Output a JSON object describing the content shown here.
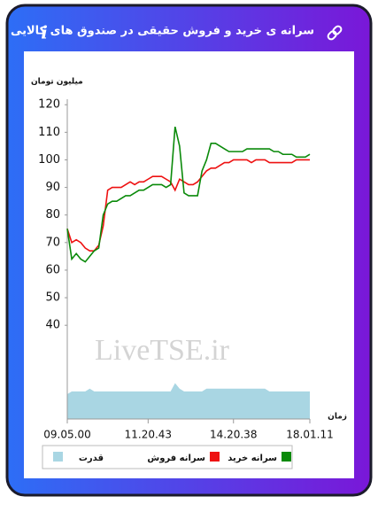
{
  "header": {
    "title": "سرانه ی خرید و فروش حقیقی در صندوق های کالایی",
    "info": "i"
  },
  "chart_data": {
    "type": "line",
    "y_label": "میلیون تومان",
    "x_label": "زمان",
    "watermark": "LiveTSE.ir",
    "categories": [
      "09.05.00",
      null,
      null,
      null,
      null,
      null,
      null,
      null,
      null,
      null,
      null,
      null,
      null,
      null,
      null,
      null,
      null,
      null,
      "11.20.43",
      null,
      null,
      null,
      null,
      null,
      null,
      null,
      null,
      null,
      null,
      null,
      null,
      null,
      null,
      null,
      null,
      null,
      null,
      "14.20.38",
      null,
      null,
      null,
      null,
      null,
      null,
      null,
      null,
      null,
      null,
      null,
      null,
      null,
      null,
      null,
      null,
      "18.01.11"
    ],
    "ylim": [
      6,
      122
    ],
    "yticks": [
      40,
      50,
      60,
      70,
      80,
      90,
      100,
      110,
      120
    ],
    "series": [
      {
        "name": "سرانه خرید",
        "color": "#0a8a0a",
        "values": [
          75,
          64,
          66,
          64,
          63,
          65,
          67,
          68,
          80,
          84,
          85,
          85,
          86,
          87,
          87,
          88,
          89,
          89,
          90,
          91,
          91,
          91,
          90,
          91,
          112,
          105,
          88,
          87,
          87,
          87,
          96,
          100,
          106,
          106,
          105,
          104,
          103,
          103,
          103,
          103,
          104,
          104,
          104,
          104,
          104,
          104,
          103,
          103,
          102,
          102,
          102,
          101,
          101,
          101,
          102
        ]
      },
      {
        "name": "سرانه فروش",
        "color": "#ee1111",
        "values": [
          75,
          70,
          71,
          70,
          68,
          67,
          67,
          69,
          76,
          89,
          90,
          90,
          90,
          91,
          92,
          91,
          92,
          92,
          93,
          94,
          94,
          94,
          93,
          92,
          89,
          93,
          92,
          91,
          91,
          92,
          94,
          96,
          97,
          97,
          98,
          99,
          99,
          100,
          100,
          100,
          100,
          99,
          100,
          100,
          100,
          99,
          99,
          99,
          99,
          99,
          99,
          100,
          100,
          100,
          100
        ]
      },
      {
        "name": "قدرت",
        "color": "#a9d6e3",
        "area": true,
        "values": [
          15,
          16,
          16,
          16,
          16,
          17,
          16,
          16,
          16,
          16,
          16,
          16,
          16,
          16,
          16,
          16,
          16,
          16,
          16,
          16,
          16,
          16,
          16,
          16,
          19,
          17,
          16,
          16,
          16,
          16,
          16,
          17,
          17,
          17,
          17,
          17,
          17,
          17,
          17,
          17,
          17,
          17,
          17,
          17,
          17,
          16,
          16,
          16,
          16,
          16,
          16,
          16,
          16,
          16,
          16
        ]
      }
    ]
  }
}
